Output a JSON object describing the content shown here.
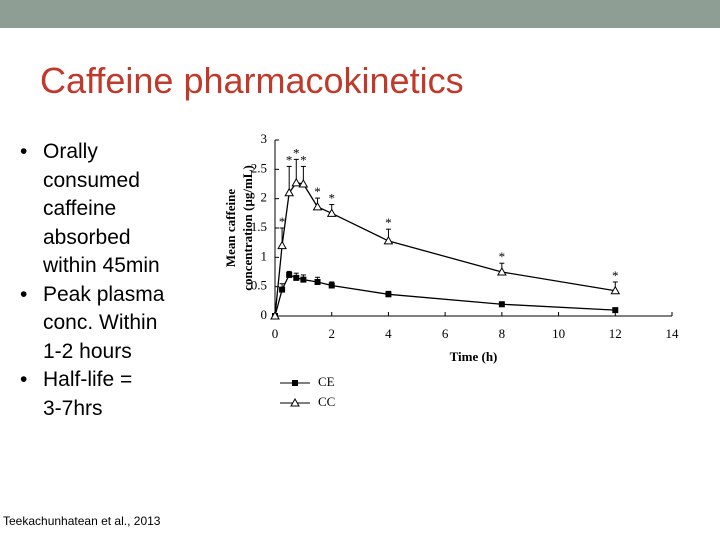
{
  "slide": {
    "title": "Caffeine pharmacokinetics",
    "bullets": [
      [
        "Orally",
        "consumed",
        "caffeine",
        "absorbed",
        "within 45min"
      ],
      [
        "Peak plasma",
        "conc. Within",
        "1-2 hours"
      ],
      [
        "Half-life =",
        "3-7hrs"
      ]
    ],
    "citation": "Teekachunhatean et al., 2013"
  },
  "chart_data": {
    "type": "line",
    "xlabel": "Time (h)",
    "ylabel": [
      "Mean caffeine",
      "concentration (µg/mL)"
    ],
    "x": [
      0,
      0.25,
      0.5,
      0.75,
      1,
      1.5,
      2,
      4,
      8,
      12
    ],
    "series": [
      {
        "name": "CE",
        "color": "#000000",
        "marker": "square",
        "values": [
          0,
          0.45,
          0.7,
          0.65,
          0.62,
          0.58,
          0.52,
          0.37,
          0.2,
          0.1
        ],
        "errors": [
          0,
          0.1,
          0.06,
          0.08,
          0.08,
          0.08,
          0.06,
          0.05,
          0.04,
          0.03
        ]
      },
      {
        "name": "CC",
        "color": "#000000",
        "marker": "triangle",
        "values": [
          0,
          1.2,
          2.1,
          2.27,
          2.25,
          1.86,
          1.75,
          1.28,
          0.75,
          0.43
        ],
        "errors": [
          0,
          0.3,
          0.45,
          0.4,
          0.3,
          0.15,
          0.15,
          0.2,
          0.15,
          0.15
        ],
        "labels": [
          null,
          "*",
          "*",
          "*",
          "*",
          "*",
          "*",
          "*",
          "*",
          "*"
        ]
      }
    ],
    "xlim": [
      0,
      14
    ],
    "xticks": [
      0,
      2,
      4,
      6,
      8,
      10,
      12,
      14
    ],
    "ylim": [
      0,
      3
    ],
    "yticks": [
      0,
      0.5,
      1,
      1.5,
      2,
      2.5,
      3
    ]
  }
}
